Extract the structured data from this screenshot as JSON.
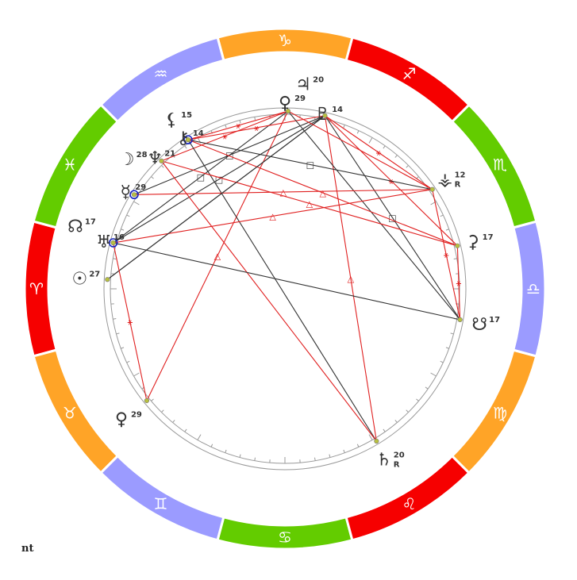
{
  "footer_text": "nt",
  "colors": {
    "fire": "#f60000",
    "earth": "#ffa427",
    "air": "#9b9bff",
    "water": "#63cc00",
    "aspect_red": "#e02020",
    "aspect_black": "#333333",
    "glyph": "#333333",
    "ring": "#999999",
    "highlight": "#1020c0",
    "point": "#b8c040"
  },
  "signs": [
    {
      "name": "Aries",
      "glyph": "♈",
      "color": "fire",
      "mid": 180
    },
    {
      "name": "Taurus",
      "glyph": "♉",
      "color": "earth",
      "mid": 210
    },
    {
      "name": "Gemini",
      "glyph": "♊",
      "color": "air",
      "mid": 240
    },
    {
      "name": "Cancer",
      "glyph": "♋",
      "color": "water",
      "mid": 270
    },
    {
      "name": "Leo",
      "glyph": "♌",
      "color": "fire",
      "mid": 300
    },
    {
      "name": "Virgo",
      "glyph": "♍",
      "color": "earth",
      "mid": 330
    },
    {
      "name": "Libra",
      "glyph": "♎",
      "color": "air",
      "mid": 0
    },
    {
      "name": "Scorpio",
      "glyph": "♏",
      "color": "water",
      "mid": 30
    },
    {
      "name": "Sagittarius",
      "glyph": "♐",
      "color": "fire",
      "mid": 60
    },
    {
      "name": "Capricorn",
      "glyph": "♑",
      "color": "earth",
      "mid": 90
    },
    {
      "name": "Aquarius",
      "glyph": "♒",
      "color": "air",
      "mid": 120
    },
    {
      "name": "Pisces",
      "glyph": "♓",
      "color": "water",
      "mid": 150
    }
  ],
  "planets": [
    {
      "id": "jupiter",
      "glyph": "♃",
      "degree": "20",
      "retro": "",
      "angle": 84,
      "label_r": 260,
      "has_point": false,
      "highlight": false
    },
    {
      "id": "venus-top",
      "glyph": "♀",
      "degree": "29",
      "retro": "",
      "angle": 89,
      "label_r": 235,
      "has_point": true,
      "highlight": false
    },
    {
      "id": "pluto",
      "glyph": "♇",
      "degree": "14",
      "retro": "",
      "angle": 77,
      "label_r": 227,
      "has_point": true,
      "highlight": false
    },
    {
      "id": "lilith",
      "glyph": "⚸",
      "degree": "15",
      "retro": "",
      "angle": 123,
      "label_r": 255,
      "has_point": false,
      "highlight": false
    },
    {
      "id": "chiron",
      "glyph": "⚷",
      "degree": "14",
      "retro": "",
      "angle": 123,
      "label_r": 228,
      "has_point": true,
      "highlight": true
    },
    {
      "id": "neptune",
      "glyph": "♆",
      "degree": "21",
      "retro": "",
      "angle": 134,
      "label_r": 230,
      "has_point": true,
      "highlight": false
    },
    {
      "id": "moon",
      "glyph": "☽",
      "degree": "28",
      "retro": "",
      "angle": 140,
      "label_r": 255,
      "has_point": false,
      "highlight": false
    },
    {
      "id": "mercury",
      "glyph": "☿",
      "degree": "29",
      "retro": "",
      "angle": 148,
      "label_r": 232,
      "has_point": true,
      "highlight": true
    },
    {
      "id": "node",
      "glyph": "☊",
      "degree": "17",
      "retro": "",
      "angle": 163,
      "label_r": 272,
      "has_point": false,
      "highlight": false
    },
    {
      "id": "uranus",
      "glyph": "♅",
      "degree": "16",
      "retro": "",
      "angle": 165,
      "label_r": 232,
      "has_point": true,
      "highlight": true
    },
    {
      "id": "sun",
      "glyph": "☉",
      "degree": "27",
      "retro": "",
      "angle": 177,
      "label_r": 255,
      "has_point": true,
      "highlight": false
    },
    {
      "id": "venus-bottom",
      "glyph": "♀",
      "degree": "29",
      "retro": "",
      "angle": 219,
      "label_r": 260,
      "has_point": true,
      "highlight": false
    },
    {
      "id": "saturn",
      "glyph": "♄",
      "degree": "20",
      "retro": "R",
      "angle": 301,
      "label_r": 250,
      "has_point": true,
      "highlight": false
    },
    {
      "id": "south-node",
      "glyph": "☋",
      "degree": "17",
      "retro": "",
      "angle": 350,
      "label_r": 253,
      "has_point": true,
      "highlight": false
    },
    {
      "id": "ceres",
      "glyph": "⚳",
      "degree": "17",
      "retro": "",
      "angle": 14,
      "label_r": 248,
      "has_point": true,
      "highlight": false
    },
    {
      "id": "vesta",
      "glyph": "⚶",
      "degree": "12",
      "retro": "R",
      "angle": 34,
      "label_r": 248,
      "has_point": true,
      "highlight": false
    }
  ],
  "aspects": [
    {
      "from": "venus-top",
      "to": "chiron",
      "type": "red",
      "symbol": "⚹"
    },
    {
      "from": "venus-top",
      "to": "neptune",
      "type": "red",
      "symbol": "⚹"
    },
    {
      "from": "venus-top",
      "to": "venus-bottom",
      "type": "red",
      "symbol": "△"
    },
    {
      "from": "venus-top",
      "to": "uranus",
      "type": "black",
      "symbol": "□"
    },
    {
      "from": "pluto",
      "to": "chiron",
      "type": "red",
      "symbol": "⚹"
    },
    {
      "from": "pluto",
      "to": "mercury",
      "type": "black",
      "symbol": "□"
    },
    {
      "from": "pluto",
      "to": "uranus",
      "type": "black",
      "symbol": "□"
    },
    {
      "from": "pluto",
      "to": "sun",
      "type": "black",
      "symbol": ""
    },
    {
      "from": "pluto",
      "to": "saturn",
      "type": "red",
      "symbol": "△"
    },
    {
      "from": "pluto",
      "to": "south-node",
      "type": "black",
      "symbol": "□"
    },
    {
      "from": "pluto",
      "to": "ceres",
      "type": "red",
      "symbol": "⚹"
    },
    {
      "from": "venus-top",
      "to": "south-node",
      "type": "black",
      "symbol": ""
    },
    {
      "from": "chiron",
      "to": "vesta",
      "type": "black",
      "symbol": "□"
    },
    {
      "from": "chiron",
      "to": "ceres",
      "type": "red",
      "symbol": "△"
    },
    {
      "from": "chiron",
      "to": "saturn",
      "type": "black",
      "symbol": ""
    },
    {
      "from": "neptune",
      "to": "ceres",
      "type": "red",
      "symbol": "△"
    },
    {
      "from": "neptune",
      "to": "saturn",
      "type": "red",
      "symbol": ""
    },
    {
      "from": "mercury",
      "to": "vesta",
      "type": "red",
      "symbol": "△"
    },
    {
      "from": "uranus",
      "to": "south-node",
      "type": "black",
      "symbol": ""
    },
    {
      "from": "uranus",
      "to": "vesta",
      "type": "red",
      "symbol": "△"
    },
    {
      "from": "sun",
      "to": "pluto",
      "type": "black",
      "symbol": ""
    },
    {
      "from": "venus-bottom",
      "to": "uranus",
      "type": "red",
      "symbol": "⚹"
    },
    {
      "from": "vesta",
      "to": "south-node",
      "type": "red",
      "symbol": "⚹"
    },
    {
      "from": "ceres",
      "to": "south-node",
      "type": "red",
      "symbol": "⚹"
    },
    {
      "from": "vesta",
      "to": "pluto",
      "type": "red",
      "symbol": "⚹"
    },
    {
      "from": "vesta",
      "to": "venus-top",
      "type": "red",
      "symbol": ""
    }
  ]
}
